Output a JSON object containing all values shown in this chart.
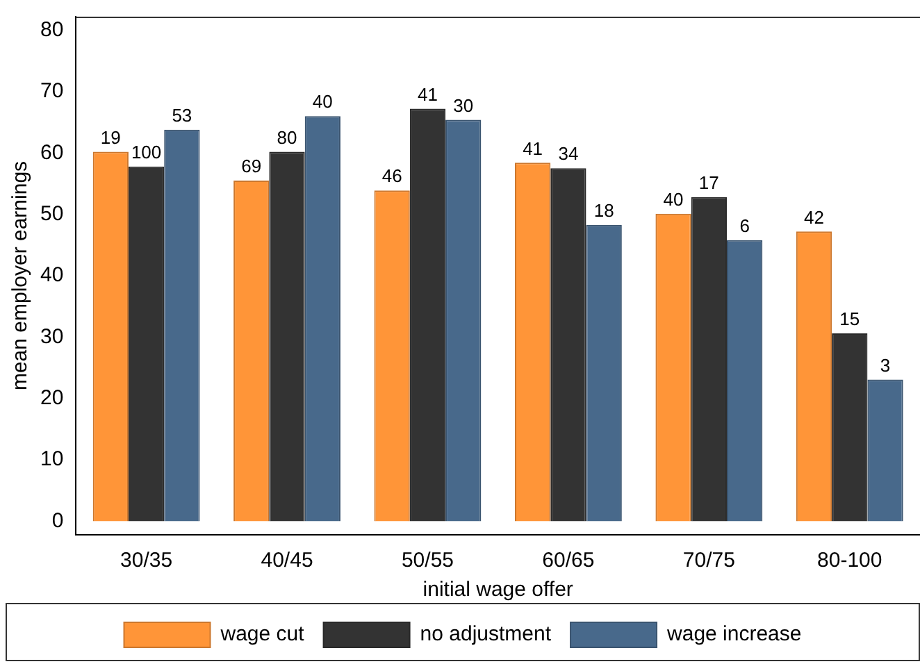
{
  "chart_data": {
    "type": "bar",
    "xlabel": "initial wage offer",
    "ylabel": "mean employer earnings",
    "categories": [
      "30/35",
      "40/45",
      "50/55",
      "60/65",
      "70/75",
      "80-100"
    ],
    "series": [
      {
        "name": "wage cut",
        "color": "#ff9538",
        "values": [
          60.2,
          55.5,
          53.9,
          58.4,
          50.1,
          47.2
        ]
      },
      {
        "name": "no adjustment",
        "color": "#333333",
        "values": [
          57.8,
          60.2,
          67.2,
          57.5,
          52.8,
          30.6
        ]
      },
      {
        "name": "wage increase",
        "color": "#48698b",
        "values": [
          63.8,
          66.0,
          65.4,
          48.3,
          45.8,
          23.1
        ]
      }
    ],
    "annotations": [
      "19",
      "100",
      "53",
      "69",
      "80",
      "40",
      "46",
      "41",
      "30",
      "41",
      "34",
      "18",
      "40",
      "17",
      "6",
      "42",
      "15",
      "3"
    ],
    "ylim": [
      -2.2,
      82.2
    ],
    "yticks": [
      0,
      10,
      20,
      30,
      40,
      50,
      60,
      70,
      80
    ],
    "grid": false,
    "legend": "bottom"
  }
}
